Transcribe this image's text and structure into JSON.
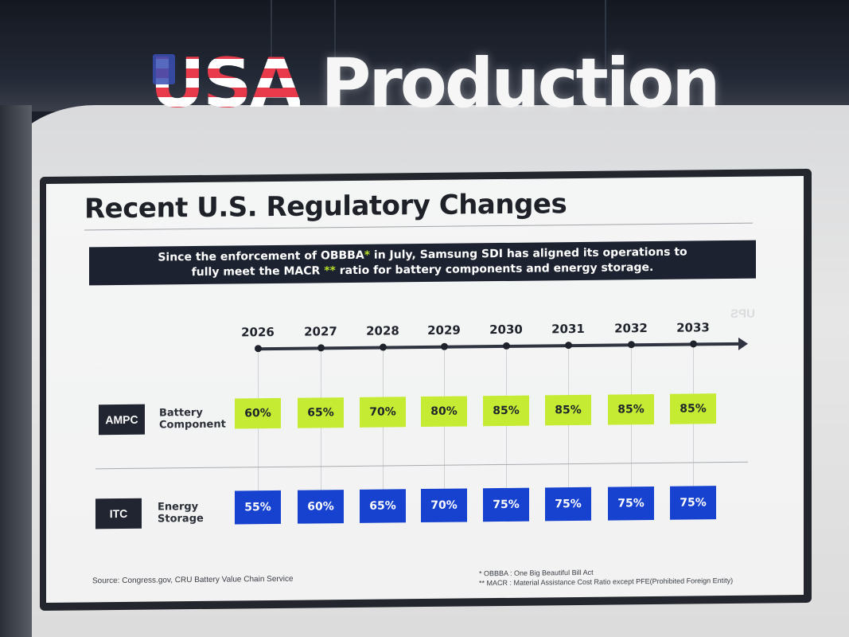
{
  "sign": {
    "usa": "USA",
    "production": "Production"
  },
  "slide": {
    "title": "Recent U.S. Regulatory Changes",
    "banner": {
      "line1_before": "Since the enforcement of OBBBA",
      "line1_star": "*",
      "line1_after": " in July, Samsung SDI has aligned its operations to",
      "line2_before": "fully meet the MACR",
      "line2_star": " **",
      "line2_after": " ratio for battery components and energy storage."
    },
    "years": [
      "2026",
      "2027",
      "2028",
      "2029",
      "2030",
      "2031",
      "2032",
      "2033"
    ],
    "rows": [
      {
        "tag": "AMPC",
        "label_line1": "Battery",
        "label_line2": "Component",
        "values": [
          "60%",
          "65%",
          "70%",
          "80%",
          "85%",
          "85%",
          "85%",
          "85%"
        ],
        "color": "#c5ec32"
      },
      {
        "tag": "ITC",
        "label_line1": "Energy",
        "label_line2": "Storage",
        "values": [
          "55%",
          "60%",
          "65%",
          "70%",
          "75%",
          "75%",
          "75%",
          "75%"
        ],
        "color": "#1742d0"
      }
    ],
    "source": "Source: Congress.gov, CRU Battery Value Chain Service",
    "footnote1": "* OBBBA : One Big Beautiful Bill Act",
    "footnote2": "** MACR : Material Assistance Cost Ratio except PFE(Prohibited Foreign Entity)",
    "mirrored_text": "UPS"
  }
}
